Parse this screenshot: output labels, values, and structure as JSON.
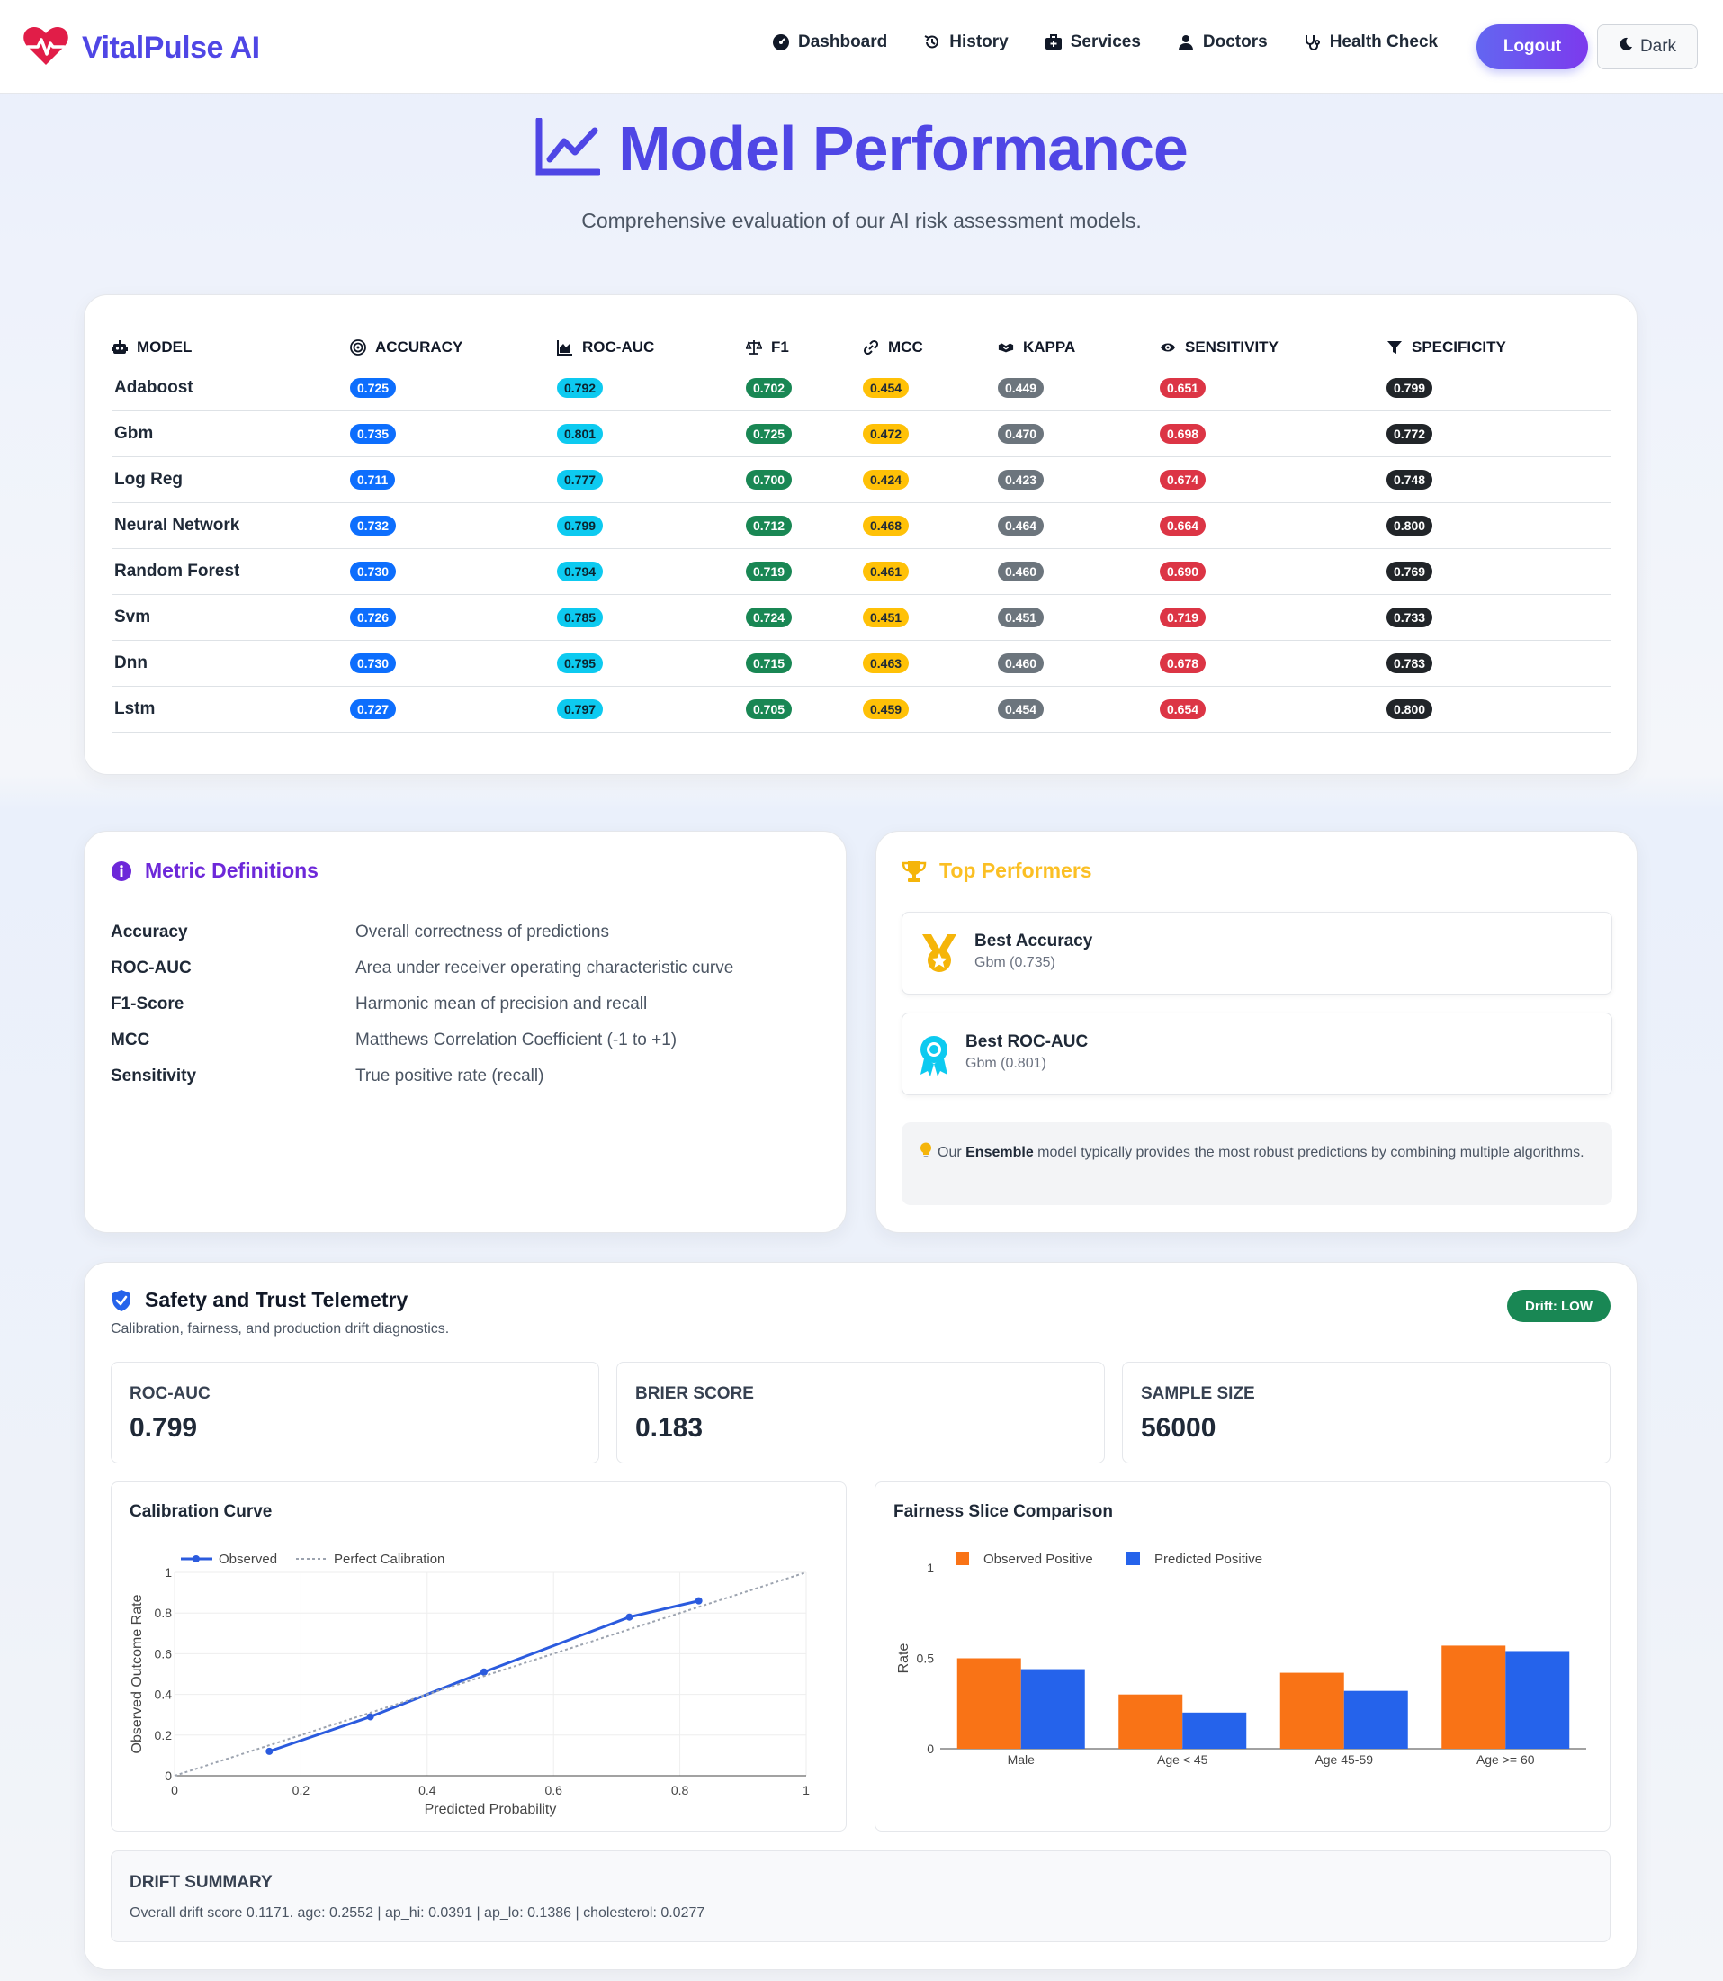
{
  "nav": {
    "brand": "VitalPulse AI",
    "links": [
      "Dashboard",
      "History",
      "Services",
      "Doctors",
      "Health Check"
    ],
    "logout": "Logout",
    "theme": "Dark"
  },
  "hero": {
    "title": "Model Performance",
    "subtitle": "Comprehensive evaluation of our AI risk assessment models."
  },
  "table": {
    "headers": [
      "MODEL",
      "ACCURACY",
      "ROC-AUC",
      "F1",
      "MCC",
      "KAPPA",
      "SENSITIVITY",
      "SPECIFICITY"
    ],
    "rows": [
      [
        "Adaboost",
        "0.725",
        "0.792",
        "0.702",
        "0.454",
        "0.449",
        "0.651",
        "0.799"
      ],
      [
        "Gbm",
        "0.735",
        "0.801",
        "0.725",
        "0.472",
        "0.470",
        "0.698",
        "0.772"
      ],
      [
        "Log Reg",
        "0.711",
        "0.777",
        "0.700",
        "0.424",
        "0.423",
        "0.674",
        "0.748"
      ],
      [
        "Neural Network",
        "0.732",
        "0.799",
        "0.712",
        "0.468",
        "0.464",
        "0.664",
        "0.800"
      ],
      [
        "Random Forest",
        "0.730",
        "0.794",
        "0.719",
        "0.461",
        "0.460",
        "0.690",
        "0.769"
      ],
      [
        "Svm",
        "0.726",
        "0.785",
        "0.724",
        "0.451",
        "0.451",
        "0.719",
        "0.733"
      ],
      [
        "Dnn",
        "0.730",
        "0.795",
        "0.715",
        "0.463",
        "0.460",
        "0.678",
        "0.783"
      ],
      [
        "Lstm",
        "0.727",
        "0.797",
        "0.705",
        "0.459",
        "0.454",
        "0.654",
        "0.800"
      ]
    ],
    "badge_colors": [
      "#0d6efd",
      "#0dcaf0",
      "#198754",
      "#ffc107",
      "#6c757d",
      "#dc3545",
      "#212529"
    ]
  },
  "definitions": {
    "title": "Metric Definitions",
    "items": [
      {
        "term": "Accuracy",
        "desc": "Overall correctness of predictions"
      },
      {
        "term": "ROC-AUC",
        "desc": "Area under receiver operating characteristic curve"
      },
      {
        "term": "F1-Score",
        "desc": "Harmonic mean of precision and recall"
      },
      {
        "term": "MCC",
        "desc": "Matthews Correlation Coefficient (-1 to +1)"
      },
      {
        "term": "Sensitivity",
        "desc": "True positive rate (recall)"
      }
    ]
  },
  "top": {
    "title": "Top Performers",
    "best_accuracy": {
      "name": "Best Accuracy",
      "value": "Gbm (0.735)"
    },
    "best_rocauc": {
      "name": "Best ROC-AUC",
      "value": "Gbm (0.801)"
    },
    "tip_pre": "Our ",
    "tip_bold": "Ensemble",
    "tip_post": " model typically provides the most robust predictions by combining multiple algorithms."
  },
  "safety": {
    "title": "Safety and Trust Telemetry",
    "subtitle": "Calibration, fairness, and production drift diagnostics.",
    "drift_badge": "Drift: LOW",
    "stats": [
      {
        "label": "ROC-AUC",
        "value": "0.799"
      },
      {
        "label": "BRIER SCORE",
        "value": "0.183"
      },
      {
        "label": "SAMPLE SIZE",
        "value": "56000"
      }
    ],
    "calibration_title": "Calibration Curve",
    "fairness_title": "Fairness Slice Comparison",
    "drift_title": "DRIFT SUMMARY",
    "drift_text": "Overall drift score 0.1171. age: 0.2552 | ap_hi: 0.0391 | ap_lo: 0.1386 | cholesterol: 0.0277"
  },
  "chart_data": [
    {
      "type": "line",
      "title": "Calibration Curve",
      "xlabel": "Predicted Probability",
      "ylabel": "Observed Outcome Rate",
      "xlim": [
        0,
        1
      ],
      "ylim": [
        0,
        1
      ],
      "xticks": [
        "0",
        "0.2",
        "0.4",
        "0.6",
        "0.8",
        "1"
      ],
      "yticks": [
        "0",
        "0.2",
        "0.4",
        "0.6",
        "0.8",
        "1"
      ],
      "legend": "top-left",
      "grid": true,
      "series": [
        {
          "name": "Observed",
          "color": "#2b5bde",
          "x": [
            0.15,
            0.31,
            0.49,
            0.72,
            0.83
          ],
          "y": [
            0.12,
            0.29,
            0.51,
            0.78,
            0.86
          ]
        },
        {
          "name": "Perfect Calibration",
          "color": "#9ca3af",
          "dashed": true,
          "x": [
            0,
            1
          ],
          "y": [
            0,
            1
          ]
        }
      ]
    },
    {
      "type": "bar",
      "title": "Fairness Slice Comparison",
      "ylabel": "Rate",
      "ylim": [
        0,
        1
      ],
      "yticks": [
        "0",
        "0.5",
        "1"
      ],
      "legend": "top-left",
      "categories": [
        "Male",
        "Age < 45",
        "Age 45-59",
        "Age >= 60"
      ],
      "series": [
        {
          "name": "Observed Positive",
          "color": "#f97316",
          "values": [
            0.5,
            0.3,
            0.42,
            0.57
          ]
        },
        {
          "name": "Predicted Positive",
          "color": "#2563eb",
          "values": [
            0.44,
            0.2,
            0.32,
            0.54
          ]
        }
      ]
    }
  ]
}
